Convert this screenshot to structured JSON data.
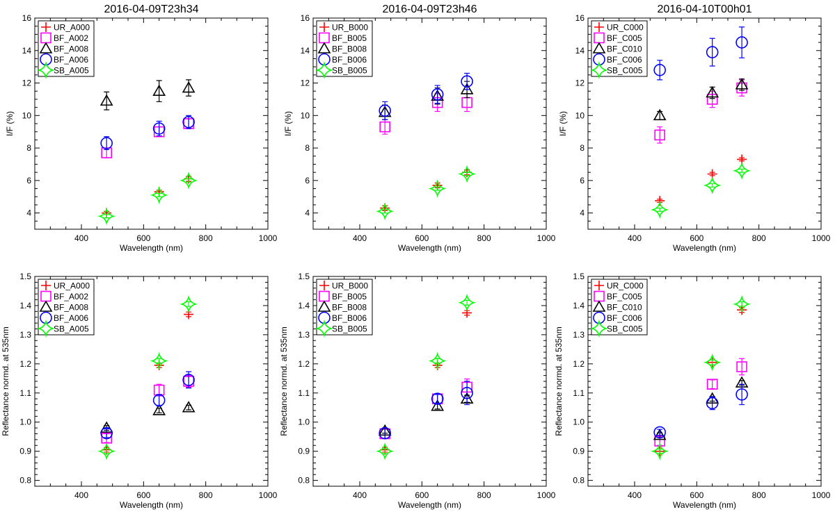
{
  "figure": {
    "x_label": "Wavelength (nm)",
    "x_ticks": [
      "400",
      "600",
      "800",
      "1000"
    ],
    "y_label_top": "I/F (%)",
    "y_label_bottom": "Reflectance normd. at 535nm",
    "y_ticks_top": [
      "4",
      "6",
      "8",
      "10",
      "12",
      "14",
      "16"
    ],
    "y_ticks_bottom": [
      "0.8",
      "0.9",
      "1.0",
      "1.1",
      "1.2",
      "1.3",
      "1.4",
      "1.5"
    ]
  },
  "series_styles": [
    {
      "marker": "plus",
      "color": "#ff0000"
    },
    {
      "marker": "square",
      "color": "#ff00ff"
    },
    {
      "marker": "triangle",
      "color": "#000000"
    },
    {
      "marker": "circle",
      "color": "#0000ff"
    },
    {
      "marker": "star",
      "color": "#00ff00"
    }
  ],
  "chart_data": [
    {
      "type": "scatter",
      "title": "2016-04-09T23h34",
      "xlabel": "Wavelength (nm)",
      "ylabel": "I/F (%)",
      "xlim": [
        250,
        1000
      ],
      "ylim": [
        3,
        16
      ],
      "legend": "top-left",
      "series": [
        {
          "name": "UR_A000",
          "x": [
            481,
            650,
            745
          ],
          "y": [
            4.0,
            5.3,
            6.1
          ],
          "err": [
            0.1,
            0.1,
            0.15
          ]
        },
        {
          "name": "BF_A002",
          "x": [
            481,
            650,
            745
          ],
          "y": [
            7.7,
            9.0,
            9.5
          ],
          "err": [
            0.3,
            0.3,
            0.3
          ]
        },
        {
          "name": "BF_A008",
          "x": [
            481,
            650,
            745
          ],
          "y": [
            10.9,
            11.5,
            11.7
          ],
          "err": [
            0.55,
            0.65,
            0.5
          ]
        },
        {
          "name": "BF_A006",
          "x": [
            481,
            650,
            745
          ],
          "y": [
            8.3,
            9.2,
            9.6
          ],
          "err": [
            0.4,
            0.45,
            0.4
          ]
        },
        {
          "name": "SB_A005",
          "x": [
            481,
            650,
            745
          ],
          "y": [
            3.8,
            5.1,
            6.0
          ],
          "err": [
            0.1,
            0.1,
            0.1
          ]
        }
      ]
    },
    {
      "type": "scatter",
      "title": "2016-04-09T23h46",
      "xlabel": "Wavelength (nm)",
      "ylabel": "I/F (%)",
      "xlim": [
        250,
        1000
      ],
      "ylim": [
        3,
        16
      ],
      "legend": "top-left",
      "series": [
        {
          "name": "UR_B000",
          "x": [
            481,
            650,
            745
          ],
          "y": [
            4.3,
            5.7,
            6.5
          ],
          "err": [
            0.15,
            0.15,
            0.15
          ]
        },
        {
          "name": "BF_B005",
          "x": [
            481,
            650,
            745
          ],
          "y": [
            9.3,
            10.8,
            10.8
          ],
          "err": [
            0.45,
            0.55,
            0.55
          ]
        },
        {
          "name": "BF_B008",
          "x": [
            481,
            650,
            745
          ],
          "y": [
            10.2,
            11.2,
            11.6
          ],
          "err": [
            0.45,
            0.5,
            0.5
          ]
        },
        {
          "name": "BF_B006",
          "x": [
            481,
            650,
            745
          ],
          "y": [
            10.3,
            11.3,
            12.1
          ],
          "err": [
            0.55,
            0.55,
            0.5
          ]
        },
        {
          "name": "SB_B005",
          "x": [
            481,
            650,
            745
          ],
          "y": [
            4.1,
            5.5,
            6.4
          ],
          "err": [
            0.1,
            0.1,
            0.1
          ]
        }
      ]
    },
    {
      "type": "scatter",
      "title": "2016-04-10T00h01",
      "xlabel": "Wavelength (nm)",
      "ylabel": "I/F (%)",
      "xlim": [
        250,
        1000
      ],
      "ylim": [
        3,
        16
      ],
      "legend": "top-left",
      "series": [
        {
          "name": "UR_C000",
          "x": [
            481,
            650,
            745
          ],
          "y": [
            4.75,
            6.4,
            7.3
          ],
          "err": [
            0.1,
            0.1,
            0.1
          ]
        },
        {
          "name": "BF_C005",
          "x": [
            481,
            650,
            745
          ],
          "y": [
            8.8,
            11.0,
            11.7
          ],
          "err": [
            0.5,
            0.5,
            0.5
          ]
        },
        {
          "name": "BF_C010",
          "x": [
            481,
            650,
            745
          ],
          "y": [
            10.0,
            11.4,
            11.9
          ],
          "err": [
            0.25,
            0.35,
            0.35
          ]
        },
        {
          "name": "BF_C006",
          "x": [
            481,
            650,
            745
          ],
          "y": [
            12.8,
            13.9,
            14.5
          ],
          "err": [
            0.6,
            0.85,
            0.95
          ]
        },
        {
          "name": "SB_C005",
          "x": [
            481,
            650,
            745
          ],
          "y": [
            4.2,
            5.7,
            6.6
          ],
          "err": [
            0.1,
            0.1,
            0.1
          ]
        }
      ]
    },
    {
      "type": "scatter",
      "title": "",
      "xlabel": "Wavelength (nm)",
      "ylabel": "Reflectance normd. at 535nm",
      "xlim": [
        250,
        1000
      ],
      "ylim": [
        0.78,
        1.5
      ],
      "legend": "top-left",
      "series": [
        {
          "name": "UR_A000",
          "x": [
            481,
            650,
            745
          ],
          "y": [
            0.905,
            1.195,
            1.37
          ],
          "err": [
            0.008,
            0.008,
            0.008
          ]
        },
        {
          "name": "BF_A002",
          "x": [
            481,
            650,
            745
          ],
          "y": [
            0.945,
            1.11,
            1.14
          ],
          "err": [
            0.015,
            0.02,
            0.02
          ]
        },
        {
          "name": "BF_A008",
          "x": [
            481,
            650,
            745
          ],
          "y": [
            0.98,
            1.04,
            1.05
          ],
          "err": [
            0.008,
            0.008,
            0.008
          ]
        },
        {
          "name": "BF_A006",
          "x": [
            481,
            650,
            745
          ],
          "y": [
            0.962,
            1.075,
            1.145
          ],
          "err": [
            0.015,
            0.02,
            0.028
          ]
        },
        {
          "name": "SB_A005",
          "x": [
            481,
            650,
            745
          ],
          "y": [
            0.9,
            1.21,
            1.405
          ],
          "err": [
            0.008,
            0.008,
            0.008
          ]
        }
      ]
    },
    {
      "type": "scatter",
      "title": "",
      "xlabel": "Wavelength (nm)",
      "ylabel": "Reflectance normd. at 535nm",
      "xlim": [
        250,
        1000
      ],
      "ylim": [
        0.78,
        1.5
      ],
      "legend": "top-left",
      "series": [
        {
          "name": "UR_B000",
          "x": [
            481,
            650,
            745
          ],
          "y": [
            0.905,
            1.195,
            1.375
          ],
          "err": [
            0.008,
            0.008,
            0.008
          ]
        },
        {
          "name": "BF_B005",
          "x": [
            481,
            650,
            745
          ],
          "y": [
            0.96,
            1.08,
            1.12
          ],
          "err": [
            0.015,
            0.018,
            0.028
          ]
        },
        {
          "name": "BF_B008",
          "x": [
            481,
            650,
            745
          ],
          "y": [
            0.97,
            1.055,
            1.08
          ],
          "err": [
            0.008,
            0.01,
            0.012
          ]
        },
        {
          "name": "BF_B006",
          "x": [
            481,
            650,
            745
          ],
          "y": [
            0.962,
            1.08,
            1.1
          ],
          "err": [
            0.018,
            0.015,
            0.04
          ]
        },
        {
          "name": "SB_B005",
          "x": [
            481,
            650,
            745
          ],
          "y": [
            0.9,
            1.21,
            1.41
          ],
          "err": [
            0.008,
            0.008,
            0.008
          ]
        }
      ]
    },
    {
      "type": "scatter",
      "title": "",
      "xlabel": "Wavelength (nm)",
      "ylabel": "Reflectance normd. at 535nm",
      "xlim": [
        250,
        1000
      ],
      "ylim": [
        0.78,
        1.5
      ],
      "legend": "top-left",
      "series": [
        {
          "name": "UR_C000",
          "x": [
            481,
            650,
            745
          ],
          "y": [
            0.9,
            1.205,
            1.385
          ],
          "err": [
            0.008,
            0.008,
            0.008
          ]
        },
        {
          "name": "BF_C005",
          "x": [
            481,
            650,
            745
          ],
          "y": [
            0.935,
            1.13,
            1.19
          ],
          "err": [
            0.015,
            0.015,
            0.028
          ]
        },
        {
          "name": "BF_C010",
          "x": [
            481,
            650,
            745
          ],
          "y": [
            0.955,
            1.08,
            1.135
          ],
          "err": [
            0.008,
            0.008,
            0.008
          ]
        },
        {
          "name": "BF_C006",
          "x": [
            481,
            650,
            745
          ],
          "y": [
            0.965,
            1.065,
            1.095
          ],
          "err": [
            0.01,
            0.022,
            0.035
          ]
        },
        {
          "name": "SB_C005",
          "x": [
            481,
            650,
            745
          ],
          "y": [
            0.9,
            1.205,
            1.405
          ],
          "err": [
            0.008,
            0.008,
            0.008
          ]
        }
      ]
    }
  ]
}
